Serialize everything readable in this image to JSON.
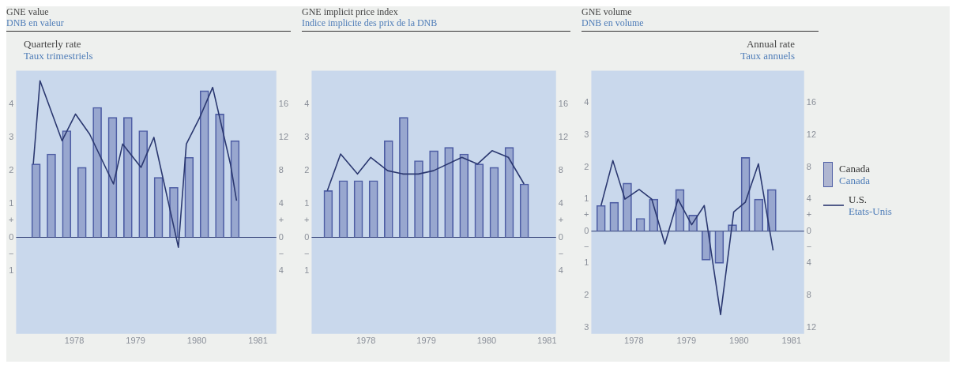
{
  "chart_data": [
    {
      "type": "bar",
      "title": "GNE value",
      "subtitle": "DNB en valeur",
      "ylabel": "Quarterly rate\nTaux trimestriels",
      "marker": "none",
      "legend": false,
      "xlim": [
        1977.55,
        1981.8
      ],
      "xticks": [
        {
          "value": 1978.5,
          "label": "1978"
        },
        {
          "value": 1979.5,
          "label": "1979"
        },
        {
          "value": 1980.5,
          "label": "1980"
        },
        {
          "value": 1981.5,
          "label": "1981"
        }
      ],
      "ylim": [
        -2.9,
        5
      ],
      "yticks": [
        {
          "value": -1,
          "label": "1"
        },
        {
          "value": -0.5,
          "label": "−"
        },
        0,
        {
          "value": 0.5,
          "label": "+"
        },
        1,
        2,
        3,
        4
      ],
      "y2lim": [
        -11.6,
        20
      ],
      "y2ticks": [
        {
          "value": -4,
          "label": "4"
        },
        {
          "value": -2,
          "label": "−"
        },
        0,
        {
          "value": 2,
          "label": "+"
        },
        4,
        8,
        12,
        16
      ],
      "ref_lines": [
        {
          "axis": "y",
          "value": 0,
          "color": "#2b3870"
        }
      ],
      "series": [
        {
          "color": "#4f5fa5",
          "x": [
            1977.875,
            1978.125,
            1978.375,
            1978.625,
            1978.875,
            1979.125,
            1979.375,
            1979.625,
            1979.875,
            1980.125,
            1980.375,
            1980.625,
            1980.875,
            1981.125
          ],
          "values": [
            2.2,
            2.5,
            3.2,
            2.1,
            3.9,
            3.6,
            3.6,
            3.2,
            1.8,
            1.5,
            2.4,
            4.4,
            3.7,
            2.9
          ]
        },
        {
          "type": "line",
          "color": "#2b3870",
          "x": [
            1977.83,
            1977.94,
            1978.3,
            1978.52,
            1978.75,
            1979.14,
            1979.29,
            1979.59,
            1979.8,
            1980.2,
            1980.33,
            1980.55,
            1980.76,
            1981.05,
            1981.15
          ],
          "values": [
            2.2,
            4.7,
            2.9,
            3.7,
            3.1,
            1.6,
            2.8,
            2.1,
            3.0,
            -0.3,
            2.8,
            3.6,
            4.5,
            2.2,
            1.1
          ]
        }
      ]
    },
    {
      "type": "bar",
      "title": "GNE implicit price index",
      "subtitle": "Indice implicite des prix de la DNB",
      "marker": "none",
      "legend": false,
      "xlim": [
        1977.6,
        1981.65
      ],
      "xticks": [
        {
          "value": 1978.5,
          "label": "1978"
        },
        {
          "value": 1979.5,
          "label": "1979"
        },
        {
          "value": 1980.5,
          "label": "1980"
        },
        {
          "value": 1981.5,
          "label": "1981"
        }
      ],
      "ylim": [
        -2.9,
        5
      ],
      "yticks": [
        {
          "value": -1,
          "label": "1"
        },
        {
          "value": -0.5,
          "label": "−"
        },
        0,
        {
          "value": 0.5,
          "label": "+"
        },
        1,
        2,
        3,
        4
      ],
      "y2lim": [
        -11.6,
        20
      ],
      "y2ticks": [
        {
          "value": -4,
          "label": "4"
        },
        {
          "value": -2,
          "label": "−"
        },
        0,
        {
          "value": 2,
          "label": "+"
        },
        4,
        8,
        12,
        16
      ],
      "ref_lines": [
        {
          "axis": "y",
          "value": 0,
          "color": "#2b3870"
        }
      ],
      "series": [
        {
          "color": "#4f5fa5",
          "x": [
            1977.875,
            1978.125,
            1978.375,
            1978.625,
            1978.875,
            1979.125,
            1979.375,
            1979.625,
            1979.875,
            1980.125,
            1980.375,
            1980.625,
            1980.875,
            1981.125
          ],
          "values": [
            1.4,
            1.7,
            1.7,
            1.7,
            2.9,
            3.6,
            2.3,
            2.6,
            2.7,
            2.5,
            2.2,
            2.1,
            2.7,
            1.6
          ]
        },
        {
          "type": "line",
          "color": "#2b3870",
          "x": [
            1977.86,
            1978.08,
            1978.36,
            1978.58,
            1978.86,
            1979.12,
            1979.37,
            1979.62,
            1980.09,
            1980.35,
            1980.59,
            1980.86,
            1981.12
          ],
          "values": [
            1.4,
            2.5,
            1.9,
            2.4,
            2.0,
            1.9,
            1.9,
            2.0,
            2.4,
            2.2,
            2.6,
            2.4,
            1.6
          ]
        }
      ]
    },
    {
      "type": "bar",
      "title": "GNE volume",
      "subtitle": "DNB en volume",
      "y2label": "Annual rate\nTaux annuels",
      "marker": "none",
      "legend": "right",
      "xlim": [
        1977.69,
        1981.74
      ],
      "xticks": [
        {
          "value": 1978.5,
          "label": "1978"
        },
        {
          "value": 1979.5,
          "label": "1979"
        },
        {
          "value": 1980.5,
          "label": "1980"
        },
        {
          "value": 1981.5,
          "label": "1981"
        }
      ],
      "ylim": [
        -3.2,
        5
      ],
      "yticks": [
        {
          "value": -3,
          "label": "3"
        },
        {
          "value": -2,
          "label": "2"
        },
        {
          "value": -1,
          "label": "1"
        },
        {
          "value": -0.5,
          "label": "−"
        },
        0,
        {
          "value": 0.5,
          "label": "+"
        },
        1,
        2,
        3,
        4
      ],
      "y2lim": [
        -12.8,
        20
      ],
      "y2ticks": [
        {
          "value": -12,
          "label": "12"
        },
        {
          "value": -8,
          "label": "8"
        },
        {
          "value": -4,
          "label": "4"
        },
        {
          "value": -2,
          "label": "−"
        },
        0,
        {
          "value": 2,
          "label": "+"
        },
        4,
        8,
        12,
        16
      ],
      "ref_lines": [
        {
          "axis": "y",
          "value": 0,
          "color": "#2b3870"
        }
      ],
      "series": [
        {
          "name": "Canada\nCanada",
          "color": "#4f5fa5",
          "x": [
            1977.875,
            1978.125,
            1978.375,
            1978.625,
            1978.875,
            1979.125,
            1979.375,
            1979.625,
            1979.875,
            1980.125,
            1980.375,
            1980.625,
            1980.875,
            1981.125
          ],
          "values": [
            0.8,
            0.9,
            1.5,
            0.4,
            1.0,
            null,
            1.3,
            0.5,
            -0.9,
            -1.0,
            0.2,
            2.3,
            1.0,
            1.3
          ]
        },
        {
          "type": "line",
          "name": "U.S.\nEtats-Unis",
          "color": "#2b3870",
          "x": [
            1977.875,
            1978.1,
            1978.33,
            1978.6,
            1978.84,
            1979.09,
            1979.34,
            1979.6,
            1979.84,
            1980.15,
            1980.4,
            1980.62,
            1980.87,
            1981.15
          ],
          "values": [
            0.8,
            2.2,
            1.0,
            1.3,
            1.0,
            -0.4,
            1.0,
            0.2,
            0.8,
            -2.6,
            0.6,
            0.9,
            2.1,
            -0.6
          ]
        }
      ]
    }
  ]
}
